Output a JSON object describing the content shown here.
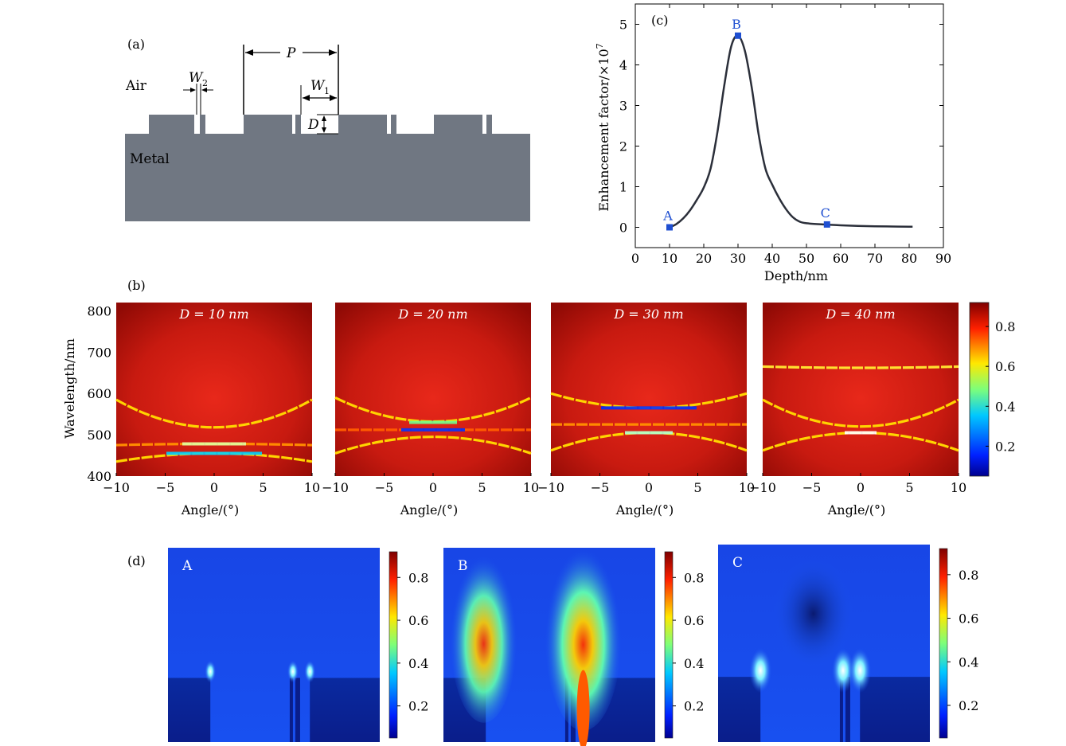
{
  "panel_a": {
    "label": "(a)",
    "air_label": "Air",
    "metal_label": "Metal",
    "dim_period": "P",
    "dim_w1_main": "W",
    "dim_w1_sub": "1",
    "dim_w2_main": "W",
    "dim_w2_sub": "2",
    "dim_depth": "D",
    "colors": {
      "metal": "#707782"
    }
  },
  "panel_b": {
    "label": "(b)",
    "ylabel": "Wavelength/nm",
    "xlabel": "Angle/(°)",
    "yticks": [
      "400",
      "500",
      "600",
      "700",
      "800"
    ],
    "xticks": [
      "−10",
      "−5",
      "0",
      "5",
      "10"
    ],
    "titles": [
      "D = 10 nm",
      "D = 20 nm",
      "D = 30 nm",
      "D = 40 nm"
    ],
    "colorbar_ticks": [
      "0.2",
      "0.4",
      "0.6",
      "0.8"
    ]
  },
  "panel_d": {
    "label": "(d)",
    "maps": [
      {
        "tag": "A",
        "colorbar_ticks": [
          "0.2",
          "0.4",
          "0.6",
          "0.8"
        ]
      },
      {
        "tag": "B",
        "colorbar_ticks": [
          "0.2",
          "0.4",
          "0.6",
          "0.8"
        ]
      },
      {
        "tag": "C",
        "colorbar_ticks": [
          "0.2",
          "0.4",
          "0.6",
          "0.8"
        ]
      }
    ]
  },
  "chart_data": {
    "type": "line",
    "title": "(c)",
    "xlabel": "Depth/nm",
    "ylabel": "Enhancement factor/×10",
    "ylabel_exp": "7",
    "xlim": [
      0,
      90
    ],
    "ylim": [
      -0.5,
      5.5
    ],
    "xticks": [
      0,
      10,
      20,
      30,
      40,
      50,
      60,
      70,
      80,
      90
    ],
    "yticks": [
      0,
      1,
      2,
      3,
      4,
      5
    ],
    "series": [
      {
        "name": "Enhancement factor",
        "x": [
          10,
          12,
          14,
          16,
          18,
          20,
          22,
          24,
          26,
          28,
          30,
          32,
          34,
          36,
          38,
          40,
          42,
          44,
          46,
          48,
          50,
          55,
          60,
          65,
          70,
          75,
          80,
          81
        ],
        "y": [
          0,
          0.08,
          0.22,
          0.42,
          0.68,
          0.98,
          1.45,
          2.35,
          3.5,
          4.45,
          4.72,
          4.35,
          3.45,
          2.3,
          1.45,
          1.05,
          0.72,
          0.45,
          0.25,
          0.14,
          0.1,
          0.07,
          0.05,
          0.035,
          0.025,
          0.02,
          0.015,
          0.015
        ]
      }
    ],
    "points": [
      {
        "label": "A",
        "x": 10,
        "y": 0.0
      },
      {
        "label": "B",
        "x": 30,
        "y": 4.72
      },
      {
        "label": "C",
        "x": 56,
        "y": 0.07
      }
    ],
    "colors": {
      "line": "#2b2f3a",
      "marker": "#1f4fd1",
      "marker_label": "#1f4fd1"
    }
  }
}
